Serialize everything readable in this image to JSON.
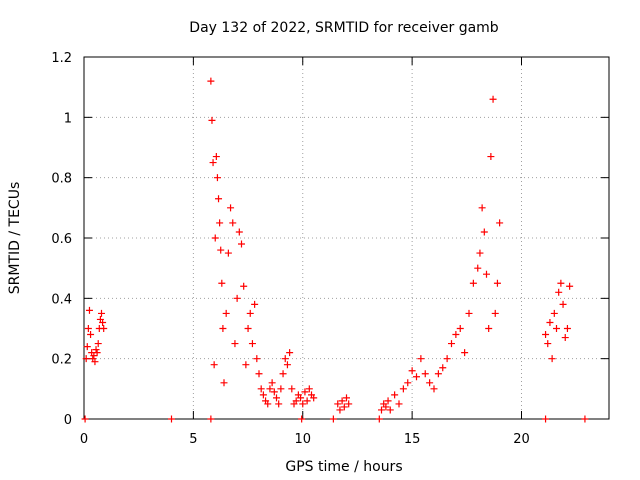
{
  "chart_data": {
    "type": "scatter",
    "title": "Day 132 of 2022, SRMTID for receiver gamb",
    "xlabel": "GPS time / hours",
    "ylabel": "SRMTID / TECUs",
    "xlim": [
      0,
      24
    ],
    "ylim": [
      0,
      1.2
    ],
    "xticks": [
      0,
      5,
      10,
      15,
      20
    ],
    "xtick_labels": [
      "0",
      "5",
      "10",
      "15",
      "20"
    ],
    "yticks": [
      0,
      0.2,
      0.4,
      0.6,
      0.8,
      1,
      1.2
    ],
    "ytick_labels": [
      "0",
      "0.2",
      "0.4",
      "0.6",
      "0.8",
      "1",
      "1.2"
    ],
    "grid": true,
    "marker": "+",
    "colors": {
      "points": "#ff0000",
      "grid": "#a0a0a0",
      "axes": "#000000"
    },
    "series": [
      {
        "name": "SRMTID",
        "x": [
          0.1,
          0.15,
          0.2,
          0.25,
          0.3,
          0.35,
          0.4,
          0.45,
          0.5,
          0.55,
          0.6,
          0.65,
          0.7,
          0.75,
          0.8,
          0.85,
          0.9,
          5.8,
          5.85,
          5.9,
          5.95,
          6.0,
          6.05,
          6.1,
          6.15,
          6.2,
          6.25,
          6.3,
          6.35,
          6.4,
          6.5,
          6.6,
          6.7,
          6.8,
          6.9,
          7.0,
          7.1,
          7.2,
          7.3,
          7.4,
          7.5,
          7.6,
          7.7,
          7.8,
          7.9,
          8.0,
          8.1,
          8.2,
          8.3,
          8.4,
          8.5,
          8.6,
          8.7,
          8.8,
          8.9,
          9.0,
          9.1,
          9.2,
          9.3,
          9.4,
          9.5,
          9.6,
          9.7,
          9.8,
          9.9,
          10.0,
          10.1,
          10.2,
          10.3,
          10.4,
          10.5,
          11.6,
          11.7,
          11.8,
          11.9,
          12.0,
          12.1,
          13.6,
          13.7,
          13.8,
          13.9,
          14.0,
          14.2,
          14.4,
          14.6,
          14.8,
          15.0,
          15.2,
          15.4,
          15.6,
          15.8,
          16.0,
          16.2,
          16.4,
          16.6,
          16.8,
          17.0,
          17.2,
          17.4,
          17.6,
          17.8,
          18.0,
          18.1,
          18.2,
          18.3,
          18.4,
          18.5,
          18.6,
          18.7,
          18.8,
          18.9,
          19.0,
          21.1,
          21.2,
          21.3,
          21.4,
          21.5,
          21.6,
          21.7,
          21.8,
          21.9,
          22.0,
          22.1,
          22.2,
          0.05,
          4.0,
          5.8,
          9.95,
          11.4,
          13.5,
          21.1,
          22.9
        ],
        "y": [
          0.2,
          0.24,
          0.3,
          0.36,
          0.28,
          0.22,
          0.2,
          0.21,
          0.19,
          0.23,
          0.22,
          0.25,
          0.3,
          0.33,
          0.35,
          0.32,
          0.3,
          1.12,
          0.99,
          0.85,
          0.18,
          0.6,
          0.87,
          0.8,
          0.73,
          0.65,
          0.56,
          0.45,
          0.3,
          0.12,
          0.35,
          0.55,
          0.7,
          0.65,
          0.25,
          0.4,
          0.62,
          0.58,
          0.44,
          0.18,
          0.3,
          0.35,
          0.25,
          0.38,
          0.2,
          0.15,
          0.1,
          0.08,
          0.06,
          0.05,
          0.1,
          0.12,
          0.09,
          0.07,
          0.05,
          0.1,
          0.15,
          0.2,
          0.18,
          0.22,
          0.1,
          0.05,
          0.06,
          0.08,
          0.07,
          0.05,
          0.09,
          0.06,
          0.1,
          0.08,
          0.07,
          0.05,
          0.03,
          0.06,
          0.04,
          0.07,
          0.05,
          0.03,
          0.05,
          0.04,
          0.06,
          0.03,
          0.08,
          0.05,
          0.1,
          0.12,
          0.16,
          0.14,
          0.2,
          0.15,
          0.12,
          0.1,
          0.15,
          0.17,
          0.2,
          0.25,
          0.28,
          0.3,
          0.22,
          0.35,
          0.45,
          0.5,
          0.55,
          0.7,
          0.62,
          0.48,
          0.3,
          0.87,
          1.06,
          0.35,
          0.45,
          0.65,
          0.28,
          0.25,
          0.32,
          0.2,
          0.35,
          0.3,
          0.42,
          0.45,
          0.38,
          0.27,
          0.3,
          0.44,
          0,
          0,
          0,
          0,
          0,
          0,
          0,
          0
        ]
      }
    ]
  }
}
